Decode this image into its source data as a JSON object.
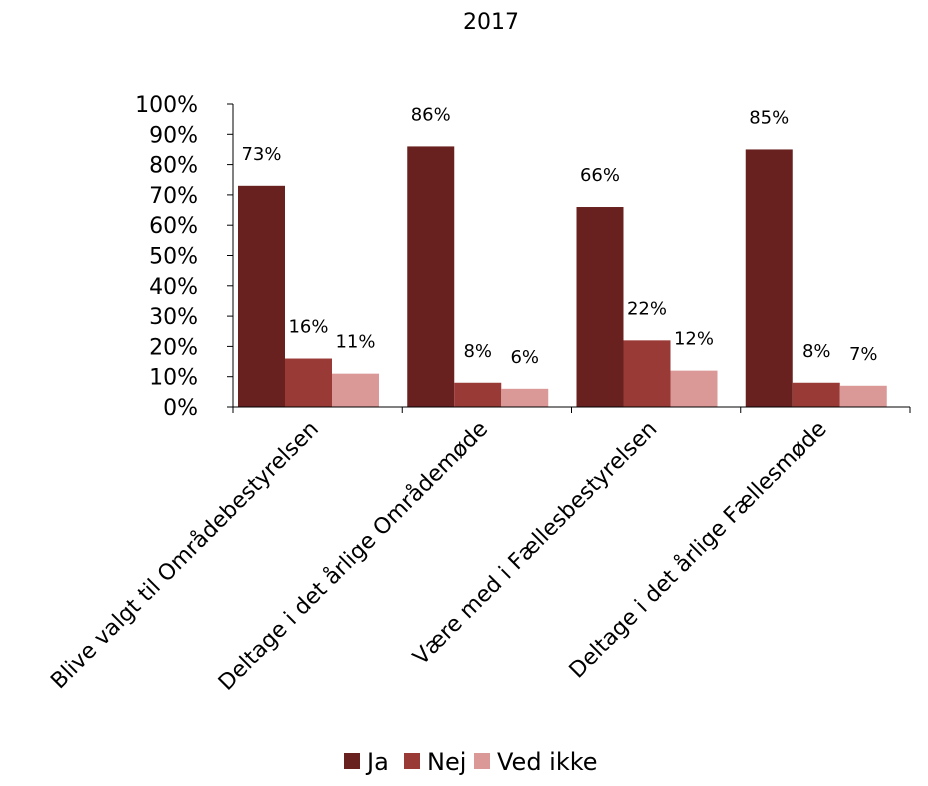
{
  "chart_data": {
    "type": "bar",
    "title": "2017",
    "xlabel": "",
    "ylabel": "",
    "categories": [
      "Blive valgt til Områdebestyrelsen",
      "Deltage i det årlige Områdemøde",
      "Være med i Fællesbestyrelsen",
      "Deltage i det årlige Fællesmøde"
    ],
    "series": [
      {
        "name": "Ja",
        "color": "#68211f",
        "values": [
          73,
          86,
          66,
          85
        ],
        "labels": [
          "73%",
          "86%",
          "66%",
          "85%"
        ]
      },
      {
        "name": "Nej",
        "color": "#9a3a37",
        "values": [
          16,
          8,
          22,
          8
        ],
        "labels": [
          "16%",
          "8%",
          "22%",
          "8%"
        ]
      },
      {
        "name": "Ved ikke",
        "color": "#da9896",
        "values": [
          11,
          6,
          12,
          7
        ],
        "labels": [
          "11%",
          "6%",
          "12%",
          "7%"
        ]
      }
    ],
    "ylim": [
      0,
      100
    ],
    "yticks": [
      "0%",
      "10%",
      "20%",
      "30%",
      "40%",
      "50%",
      "60%",
      "70%",
      "80%",
      "90%",
      "100%"
    ],
    "grid": false,
    "legend_position": "bottom"
  }
}
